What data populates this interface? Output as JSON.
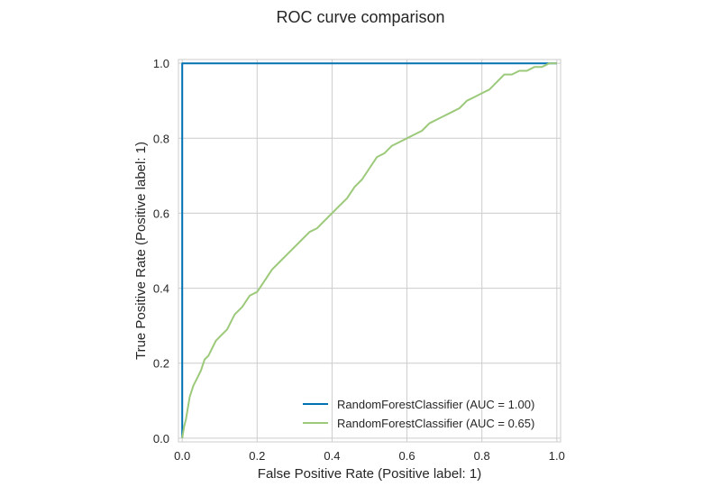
{
  "chart_data": {
    "type": "line",
    "title": "ROC curve comparison",
    "xlabel": "False Positive Rate (Positive label: 1)",
    "ylabel": "True Positive Rate (Positive label: 1)",
    "xlim": [
      -0.01,
      1.01
    ],
    "ylim": [
      -0.01,
      1.01
    ],
    "xticks": [
      "0.0",
      "0.2",
      "0.4",
      "0.6",
      "0.8",
      "1.0"
    ],
    "yticks": [
      "0.0",
      "0.2",
      "0.4",
      "0.6",
      "0.8",
      "1.0"
    ],
    "grid": true,
    "legend_position": "bottom-right",
    "series": [
      {
        "name": "RandomForestClassifier (AUC = 1.00)",
        "color": "#0072b2",
        "x": [
          0.0,
          0.0,
          0.0,
          1.0
        ],
        "y": [
          0.0,
          0.5,
          1.0,
          1.0
        ]
      },
      {
        "name": "RandomForestClassifier (AUC = 0.65)",
        "color": "#9cc97a",
        "x": [
          0.0,
          0.005,
          0.01,
          0.015,
          0.02,
          0.03,
          0.04,
          0.05,
          0.06,
          0.07,
          0.08,
          0.09,
          0.1,
          0.12,
          0.14,
          0.16,
          0.18,
          0.2,
          0.22,
          0.24,
          0.26,
          0.28,
          0.3,
          0.32,
          0.34,
          0.36,
          0.38,
          0.4,
          0.42,
          0.44,
          0.46,
          0.48,
          0.5,
          0.52,
          0.54,
          0.56,
          0.58,
          0.6,
          0.62,
          0.64,
          0.66,
          0.68,
          0.7,
          0.72,
          0.74,
          0.76,
          0.78,
          0.8,
          0.82,
          0.84,
          0.86,
          0.88,
          0.9,
          0.92,
          0.94,
          0.96,
          0.98,
          1.0
        ],
        "y": [
          0.0,
          0.03,
          0.05,
          0.08,
          0.11,
          0.14,
          0.16,
          0.18,
          0.21,
          0.22,
          0.24,
          0.26,
          0.27,
          0.29,
          0.33,
          0.35,
          0.38,
          0.39,
          0.42,
          0.45,
          0.47,
          0.49,
          0.51,
          0.53,
          0.55,
          0.56,
          0.58,
          0.6,
          0.62,
          0.64,
          0.67,
          0.69,
          0.72,
          0.75,
          0.76,
          0.78,
          0.79,
          0.8,
          0.81,
          0.82,
          0.84,
          0.85,
          0.86,
          0.87,
          0.88,
          0.9,
          0.91,
          0.92,
          0.93,
          0.95,
          0.97,
          0.97,
          0.98,
          0.98,
          0.99,
          0.99,
          1.0,
          1.0
        ]
      }
    ]
  }
}
